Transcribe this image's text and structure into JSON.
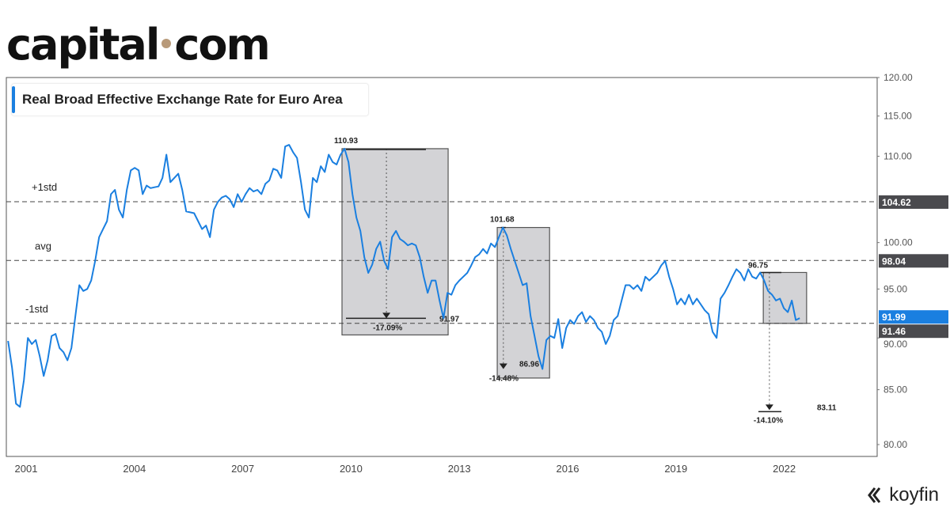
{
  "brand": {
    "name_left": "capital",
    "name_right": "com",
    "dot_color": "#b89a7a"
  },
  "watermark": "koyfin",
  "chart_data": {
    "type": "line",
    "title": "Real Broad Effective Exchange Rate for Euro Area",
    "y_scale": "log",
    "ylim": [
      80,
      120
    ],
    "xlim": [
      2000.35,
      2024.7
    ],
    "y_ticks": [
      "120.00",
      "115.00",
      "110.00",
      "100.00",
      "95.00",
      "90.00",
      "85.00",
      "80.00"
    ],
    "y_tick_values": [
      120,
      115,
      110,
      100,
      95,
      90,
      85,
      80
    ],
    "x_ticks": [
      "2001",
      "2004",
      "2007",
      "2010",
      "2013",
      "2016",
      "2019",
      "2022"
    ],
    "x_tick_values": [
      2001,
      2004,
      2007,
      2010,
      2013,
      2016,
      2019,
      2022
    ],
    "line_color": "#1a7fe0",
    "series": [
      {
        "name": "Real Broad Effective Exchange Rate",
        "start_year": 2000.5,
        "step_years": 0.10965,
        "values": [
          89.7,
          87.1,
          83.7,
          83.4,
          85.9,
          90.0,
          89.4,
          89.8,
          88.2,
          86.3,
          87.8,
          90.2,
          90.4,
          89.0,
          88.6,
          87.8,
          89.0,
          92.2,
          95.4,
          94.8,
          95.0,
          95.9,
          98.0,
          100.6,
          101.5,
          102.4,
          105.5,
          106.0,
          103.7,
          102.8,
          106.0,
          108.3,
          108.6,
          108.3,
          105.5,
          106.5,
          106.2,
          106.3,
          106.4,
          107.4,
          110.2,
          106.9,
          107.4,
          107.9,
          106.0,
          103.5,
          103.4,
          103.3,
          102.4,
          101.5,
          101.9,
          100.6,
          103.7,
          104.6,
          105.1,
          105.3,
          104.9,
          104.0,
          105.5,
          104.6,
          105.5,
          106.2,
          105.8,
          106.0,
          105.5,
          106.7,
          107.1,
          108.5,
          108.3,
          107.4,
          111.2,
          111.4,
          110.5,
          109.8,
          106.9,
          103.7,
          102.8,
          107.4,
          106.9,
          108.8,
          108.1,
          110.2,
          109.3,
          109.0,
          110.2,
          110.93,
          109.3,
          105.5,
          102.8,
          101.3,
          98.4,
          96.7,
          97.6,
          99.3,
          100.1,
          98.0,
          97.1,
          100.6,
          101.3,
          100.4,
          100.1,
          99.7,
          99.9,
          99.7,
          98.4,
          96.3,
          94.6,
          95.9,
          95.9,
          93.8,
          91.97,
          94.6,
          94.4,
          95.4,
          95.9,
          96.3,
          96.7,
          97.5,
          98.4,
          98.7,
          99.3,
          98.8,
          99.9,
          99.5,
          100.6,
          101.68,
          100.8,
          99.3,
          98.0,
          96.7,
          95.4,
          95.6,
          92.2,
          90.2,
          88.2,
          86.96,
          89.8,
          90.2,
          90.0,
          91.9,
          89.0,
          91.0,
          91.8,
          91.4,
          92.2,
          92.6,
          91.6,
          92.2,
          91.8,
          91.0,
          90.6,
          89.4,
          90.2,
          91.8,
          92.2,
          93.8,
          95.4,
          95.4,
          95.0,
          95.4,
          94.8,
          96.3,
          95.9,
          96.3,
          96.7,
          97.5,
          98.0,
          96.3,
          95.0,
          93.4,
          94.0,
          93.4,
          94.4,
          93.4,
          94.0,
          93.4,
          92.8,
          92.4,
          90.6,
          90.0,
          94.0,
          94.6,
          95.4,
          96.3,
          97.1,
          96.7,
          95.9,
          97.1,
          96.3,
          96.1,
          96.75,
          95.9,
          94.8,
          94.4,
          93.8,
          94.0,
          93.0,
          92.6,
          93.8,
          91.8,
          91.99
        ]
      }
    ],
    "reference_lines": [
      {
        "label": "+1std",
        "value": 104.62,
        "badge": "104.62"
      },
      {
        "label": "avg",
        "value": 98.04,
        "badge": "98.04"
      },
      {
        "label": "-1std",
        "value": 91.46,
        "badge": "91.46"
      }
    ],
    "last_value": {
      "value": 91.99,
      "badge": "91.99",
      "color": "#1a7fe0"
    },
    "drawdowns": [
      {
        "x0": 2009.75,
        "x1": 2012.69,
        "top": 110.93,
        "bottom": 90.3,
        "peak_label": "110.93",
        "peak": 110.93,
        "target": 91.97,
        "target_label": "91.97",
        "arrow_x": 2010.98,
        "pct": "-17.09%"
      },
      {
        "x0": 2014.05,
        "x1": 2015.5,
        "top": 101.68,
        "bottom": 86.1,
        "peak_label": "101.68",
        "peak": 101.68,
        "target": 86.96,
        "target_label": "86.96",
        "arrow_x": 2014.22,
        "pct": "-14.48%"
      },
      {
        "x0": 2021.42,
        "x1": 2022.62,
        "top": 96.75,
        "bottom": 91.46,
        "peak_label": "96.75",
        "peak": 96.75,
        "target": 83.11,
        "target_label": "83.11",
        "arrow_x": 2021.59,
        "pct": "-14.10%"
      }
    ]
  }
}
